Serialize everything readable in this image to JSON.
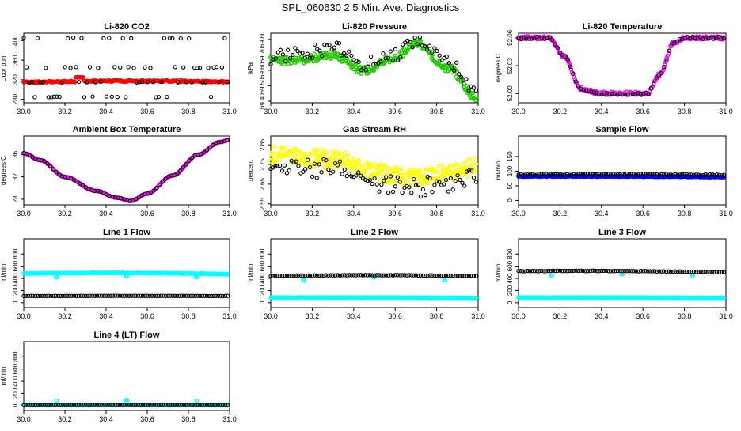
{
  "page_title": "SPL_060630  2.5 Min. Ave. Diagnostics",
  "colors": {
    "black": "#000000",
    "red": "#ff0000",
    "green": "#22cc00",
    "magenta": "#ff00ff",
    "yellow": "#ffff00",
    "blue": "#0000ff",
    "cyan": "#00ffff"
  },
  "chart_data": [
    {
      "id": "co2",
      "type": "scatter",
      "title": "Li-820 CO2",
      "ylabel": "Licor ppm",
      "xlabel": "",
      "xlim": [
        30.0,
        31.0
      ],
      "ylim": [
        273,
        415
      ],
      "xticks": [
        "30.0",
        "30.2",
        "30.4",
        "30.6",
        "30.8",
        "31.0"
      ],
      "yticks": [
        {
          "v": 280,
          "t": "280"
        },
        {
          "v": 320,
          "t": "320"
        },
        {
          "v": 360,
          "t": "360"
        },
        {
          "v": 400,
          "t": "400"
        }
      ],
      "series": [
        {
          "name": "primary",
          "color": "#ff0000",
          "kind": "line",
          "n": 200,
          "start": 315,
          "end": 316,
          "amp": 2.0,
          "noise": 1.5,
          "bumps": [
            {
              "x": 30.27,
              "y": 325,
              "w": 0.02
            }
          ]
        },
        {
          "name": "secondary",
          "color": "#000000",
          "kind": "levels",
          "levels": [
            285,
            345,
            405,
            315
          ],
          "n": 75,
          "start": 315,
          "end": 315
        }
      ]
    },
    {
      "id": "pressure",
      "type": "scatter",
      "title": "Li-820 Pressure",
      "ylabel": "kPa",
      "xlabel": "",
      "xlim": [
        30.0,
        31.0
      ],
      "ylim": [
        69.39,
        69.84
      ],
      "xticks": [
        "30.0",
        "30.2",
        "30.4",
        "30.6",
        "30.8",
        "31.0"
      ],
      "yticks": [
        {
          "v": 69.4,
          "t": "69.40"
        },
        {
          "v": 69.5,
          "t": "69.50"
        },
        {
          "v": 69.6,
          "t": "69.60"
        },
        {
          "v": 69.7,
          "t": "69.70"
        },
        {
          "v": 69.8,
          "t": "69.80"
        }
      ],
      "series": [
        {
          "name": "primary",
          "color": "#22cc00",
          "kind": "curve",
          "n": 260,
          "noise": 0.025,
          "knots": [
            [
              30.0,
              69.66
            ],
            [
              30.15,
              69.67
            ],
            [
              30.3,
              69.7
            ],
            [
              30.45,
              69.6
            ],
            [
              30.6,
              69.68
            ],
            [
              30.7,
              69.78
            ],
            [
              30.85,
              69.62
            ],
            [
              31.0,
              69.42
            ]
          ]
        },
        {
          "name": "secondary",
          "color": "#000000",
          "kind": "curve",
          "n": 85,
          "noise": 0.045,
          "knots": [
            [
              30.0,
              69.68
            ],
            [
              30.15,
              69.72
            ],
            [
              30.3,
              69.74
            ],
            [
              30.45,
              69.64
            ],
            [
              30.6,
              69.7
            ],
            [
              30.7,
              69.8
            ],
            [
              30.85,
              69.65
            ],
            [
              31.0,
              69.45
            ]
          ]
        }
      ]
    },
    {
      "id": "temperature",
      "type": "scatter",
      "title": "Li-820 Temperature",
      "ylabel": "degrees C",
      "xlabel": "",
      "xlim": [
        30.0,
        31.0
      ],
      "ylim": [
        51.99,
        52.065
      ],
      "xticks": [
        "30.0",
        "30.2",
        "30.4",
        "30.6",
        "30.8",
        "31.0"
      ],
      "yticks": [
        {
          "v": 52.0,
          "t": "52.00"
        },
        {
          "v": 52.03,
          "t": "52.03"
        },
        {
          "v": 52.06,
          "t": "52.06"
        }
      ],
      "series": [
        {
          "name": "primary",
          "color": "#ff00ff",
          "kind": "curve",
          "n": 220,
          "noise": 0.0018,
          "knots": [
            [
              30.0,
              52.06
            ],
            [
              30.15,
              52.06
            ],
            [
              30.22,
              52.04
            ],
            [
              30.3,
              52.005
            ],
            [
              30.4,
              52.0
            ],
            [
              30.62,
              52.0
            ],
            [
              30.68,
              52.02
            ],
            [
              30.75,
              52.055
            ],
            [
              30.8,
              52.06
            ],
            [
              31.0,
              52.06
            ]
          ]
        },
        {
          "name": "secondary",
          "color": "#000000",
          "kind": "curve",
          "n": 80,
          "noise": 0.0012,
          "knots": [
            [
              30.0,
              52.06
            ],
            [
              30.15,
              52.06
            ],
            [
              30.22,
              52.04
            ],
            [
              30.3,
              52.005
            ],
            [
              30.4,
              52.0
            ],
            [
              30.62,
              52.0
            ],
            [
              30.68,
              52.02
            ],
            [
              30.75,
              52.055
            ],
            [
              30.8,
              52.06
            ],
            [
              31.0,
              52.06
            ]
          ]
        }
      ]
    },
    {
      "id": "ambient",
      "type": "scatter",
      "title": "Ambient Box Temperature",
      "ylabel": "degrees C",
      "xlabel": "",
      "xlim": [
        30.0,
        31.0
      ],
      "ylim": [
        27.0,
        39.3
      ],
      "xticks": [
        "30.0",
        "30.2",
        "30.4",
        "30.6",
        "30.8",
        "31.0"
      ],
      "yticks": [
        {
          "v": 28,
          "t": "28"
        },
        {
          "v": 32,
          "t": "32"
        },
        {
          "v": 36,
          "t": "36"
        }
      ],
      "series": [
        {
          "name": "primary",
          "color": "#ff00ff",
          "kind": "curve",
          "n": 180,
          "noise": 0.05,
          "knots": [
            [
              30.0,
              36.2
            ],
            [
              30.08,
              35.0
            ],
            [
              30.2,
              32.0
            ],
            [
              30.35,
              29.5
            ],
            [
              30.45,
              28.3
            ],
            [
              30.52,
              27.7
            ],
            [
              30.6,
              29.0
            ],
            [
              30.72,
              32.2
            ],
            [
              30.85,
              36.0
            ],
            [
              30.95,
              38.2
            ],
            [
              31.0,
              38.6
            ]
          ]
        },
        {
          "name": "secondary",
          "color": "#000000",
          "kind": "curve",
          "n": 70,
          "noise": 0.05,
          "knots": [
            [
              30.0,
              36.2
            ],
            [
              30.08,
              35.0
            ],
            [
              30.2,
              32.0
            ],
            [
              30.35,
              29.5
            ],
            [
              30.45,
              28.3
            ],
            [
              30.52,
              27.7
            ],
            [
              30.6,
              29.0
            ],
            [
              30.72,
              32.2
            ],
            [
              30.85,
              36.0
            ],
            [
              30.95,
              38.2
            ],
            [
              31.0,
              38.6
            ]
          ]
        }
      ]
    },
    {
      "id": "rh",
      "type": "scatter",
      "title": "Gas Stream RH",
      "ylabel": "percent",
      "xlabel": "",
      "xlim": [
        30.0,
        31.0
      ],
      "ylim": [
        2.545,
        2.895
      ],
      "xticks": [
        "30.0",
        "30.2",
        "30.4",
        "30.6",
        "30.8",
        "31.0"
      ],
      "yticks": [
        {
          "v": 2.55,
          "t": "2.55"
        },
        {
          "v": 2.65,
          "t": "2.65"
        },
        {
          "v": 2.75,
          "t": "2.75"
        },
        {
          "v": 2.85,
          "t": "2.85"
        }
      ],
      "series": [
        {
          "name": "primary",
          "color": "#ffff00",
          "kind": "curve",
          "n": 320,
          "noise": 0.045,
          "knots": [
            [
              30.0,
              2.8
            ],
            [
              30.2,
              2.78
            ],
            [
              30.35,
              2.77
            ],
            [
              30.5,
              2.71
            ],
            [
              30.7,
              2.68
            ],
            [
              30.85,
              2.71
            ],
            [
              31.0,
              2.74
            ]
          ]
        },
        {
          "name": "secondary",
          "color": "#000000",
          "kind": "curve",
          "n": 90,
          "noise": 0.05,
          "knots": [
            [
              30.0,
              2.76
            ],
            [
              30.2,
              2.73
            ],
            [
              30.35,
              2.74
            ],
            [
              30.5,
              2.66
            ],
            [
              30.7,
              2.63
            ],
            [
              30.85,
              2.66
            ],
            [
              31.0,
              2.7
            ]
          ]
        }
      ]
    },
    {
      "id": "sample",
      "type": "scatter",
      "title": "Sample Flow",
      "ylabel": "ml/min",
      "xlabel": "",
      "xlim": [
        30.0,
        31.0
      ],
      "ylim": [
        -15,
        220
      ],
      "xticks": [
        "30.0",
        "30.2",
        "30.4",
        "30.6",
        "30.8",
        "31.0"
      ],
      "yticks": [
        {
          "v": 0,
          "t": "0"
        },
        {
          "v": 50,
          "t": "50"
        },
        {
          "v": 100,
          "t": "100"
        },
        {
          "v": 150,
          "t": "150"
        }
      ],
      "series": [
        {
          "name": "primary",
          "color": "#0000ff",
          "kind": "line",
          "n": 240,
          "start": 82,
          "end": 80,
          "amp": 1.0,
          "noise": 1.2
        },
        {
          "name": "secondary",
          "color": "#000000",
          "kind": "line",
          "n": 90,
          "start": 88,
          "end": 87,
          "amp": 2.0,
          "noise": 2.0
        }
      ]
    },
    {
      "id": "line1",
      "type": "scatter",
      "title": "Line 1 Flow",
      "ylabel": "ml/min",
      "xlabel": "",
      "xlim": [
        30.0,
        31.0
      ],
      "ylim": [
        -80,
        1050
      ],
      "xticks": [
        "30.0",
        "30.2",
        "30.4",
        "30.6",
        "30.8",
        "31.0"
      ],
      "yticks": [
        {
          "v": 0,
          "t": "0"
        },
        {
          "v": 200,
          "t": "200"
        },
        {
          "v": 400,
          "t": "400"
        },
        {
          "v": 600,
          "t": "600"
        },
        {
          "v": 800,
          "t": "800"
        }
      ],
      "series": [
        {
          "name": "primary",
          "color": "#00ffff",
          "kind": "line",
          "n": 240,
          "start": 480,
          "end": 470,
          "amp": 15,
          "noise": 5,
          "bumps": [
            {
              "x": 30.16,
              "y": 420,
              "w": 0.004
            },
            {
              "x": 30.5,
              "y": 430,
              "w": 0.004
            },
            {
              "x": 30.84,
              "y": 420,
              "w": 0.004
            }
          ]
        },
        {
          "name": "secondary",
          "color": "#000000",
          "kind": "line",
          "n": 90,
          "start": 110,
          "end": 110,
          "amp": 2,
          "noise": 2
        }
      ]
    },
    {
      "id": "line2",
      "type": "scatter",
      "title": "Line 2 Flow",
      "ylabel": "ml/min",
      "xlabel": "",
      "xlim": [
        30.0,
        31.0
      ],
      "ylim": [
        -80,
        1050
      ],
      "xticks": [
        "30.0",
        "30.2",
        "30.4",
        "30.6",
        "30.8",
        "31.0"
      ],
      "yticks": [
        {
          "v": 0,
          "t": "0"
        },
        {
          "v": 200,
          "t": "200"
        },
        {
          "v": 400,
          "t": "400"
        },
        {
          "v": 600,
          "t": "600"
        },
        {
          "v": 800,
          "t": "800"
        }
      ],
      "series": [
        {
          "name": "primary",
          "color": "#00ffff",
          "kind": "line",
          "n": 240,
          "start": 85,
          "end": 80,
          "amp": 3,
          "noise": 3,
          "bumps": [
            {
              "x": 30.16,
              "y": 370,
              "w": 0.004
            },
            {
              "x": 30.5,
              "y": 420,
              "w": 0.004
            },
            {
              "x": 30.84,
              "y": 370,
              "w": 0.004
            }
          ]
        },
        {
          "name": "secondary",
          "color": "#000000",
          "kind": "line",
          "n": 90,
          "start": 440,
          "end": 440,
          "amp": 12,
          "noise": 4
        }
      ]
    },
    {
      "id": "line3",
      "type": "scatter",
      "title": "Line 3 Flow",
      "ylabel": "ml/min",
      "xlabel": "",
      "xlim": [
        30.0,
        31.0
      ],
      "ylim": [
        -80,
        1050
      ],
      "xticks": [
        "30.0",
        "30.2",
        "30.4",
        "30.6",
        "30.8",
        "31.0"
      ],
      "yticks": [
        {
          "v": 0,
          "t": "0"
        },
        {
          "v": 200,
          "t": "200"
        },
        {
          "v": 400,
          "t": "400"
        },
        {
          "v": 600,
          "t": "600"
        },
        {
          "v": 800,
          "t": "800"
        }
      ],
      "series": [
        {
          "name": "primary",
          "color": "#00ffff",
          "kind": "line",
          "n": 240,
          "start": 85,
          "end": 80,
          "amp": 3,
          "noise": 3,
          "bumps": [
            {
              "x": 30.16,
              "y": 450,
              "w": 0.004
            },
            {
              "x": 30.5,
              "y": 470,
              "w": 0.004
            },
            {
              "x": 30.84,
              "y": 450,
              "w": 0.004
            }
          ]
        },
        {
          "name": "secondary",
          "color": "#000000",
          "kind": "line",
          "n": 90,
          "start": 520,
          "end": 500,
          "amp": 12,
          "noise": 4
        }
      ]
    },
    {
      "id": "line4",
      "type": "scatter",
      "title": "Line 4 (LT) Flow",
      "ylabel": "ml/min",
      "xlabel": "",
      "xlim": [
        30.0,
        31.0
      ],
      "ylim": [
        -80,
        1050
      ],
      "xticks": [
        "30.0",
        "30.2",
        "30.4",
        "30.6",
        "30.8",
        "31.0"
      ],
      "yticks": [
        {
          "v": 0,
          "t": "0"
        },
        {
          "v": 200,
          "t": "200"
        },
        {
          "v": 400,
          "t": "400"
        },
        {
          "v": 600,
          "t": "600"
        },
        {
          "v": 800,
          "t": "800"
        }
      ],
      "series": [
        {
          "name": "primary",
          "color": "#00ffff",
          "kind": "line",
          "n": 200,
          "start": 8,
          "end": 8,
          "amp": 1,
          "noise": 2,
          "bumps": [
            {
              "x": 30.16,
              "y": 80,
              "w": 0.004
            },
            {
              "x": 30.5,
              "y": 90,
              "w": 0.004
            },
            {
              "x": 30.84,
              "y": 80,
              "w": 0.004
            }
          ]
        },
        {
          "name": "secondary",
          "color": "#000000",
          "kind": "line",
          "n": 90,
          "start": 8,
          "end": 8,
          "amp": 1,
          "noise": 1
        }
      ]
    }
  ]
}
